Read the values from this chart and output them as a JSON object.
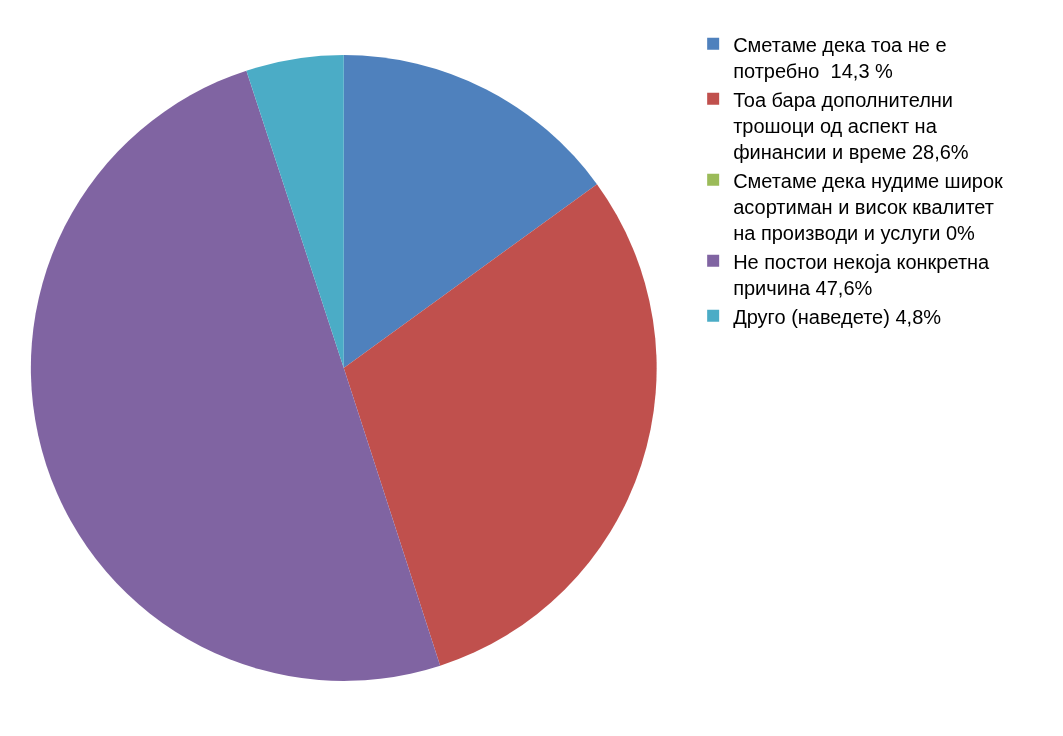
{
  "chart_data": {
    "type": "pie",
    "categories": [
      "Сметаме дека тоа не е потребно  14,3 %",
      "Тоа бара дополнителни трошоци од аспект на финансии и време 28,6%",
      "Сметаме дека нудиме широк асортиман и висок квалитет на производи и услуги 0%",
      "Не постои некоја конкретна причина 47,6%",
      "Друго (наведете) 4,8%"
    ],
    "values": [
      14.3,
      28.6,
      0,
      47.6,
      4.8
    ],
    "colors": [
      "#4f81bd",
      "#c0504d",
      "#9bbb59",
      "#8064a2",
      "#4bacc6"
    ],
    "legend": "right"
  }
}
